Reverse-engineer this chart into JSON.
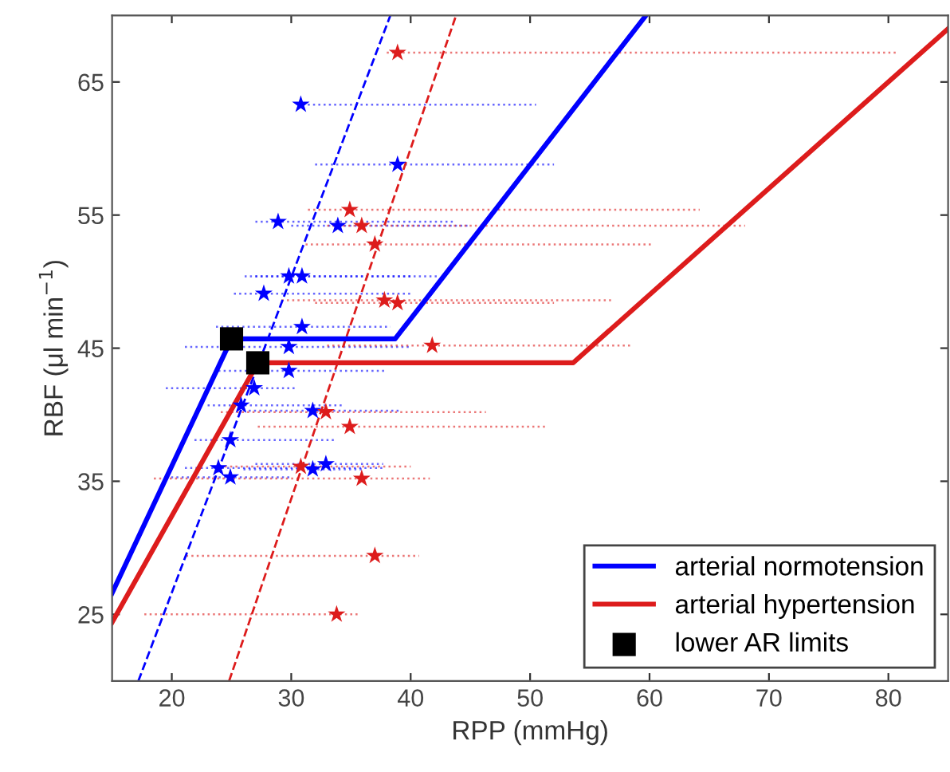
{
  "chart_data": {
    "type": "line",
    "xlabel": "RPP (mmHg)",
    "ylabel": "RBF (μl min$^{−1}$)",
    "xlim": [
      15,
      85
    ],
    "ylim": [
      20,
      70
    ],
    "xticks": [
      20,
      30,
      40,
      50,
      60,
      70,
      80
    ],
    "yticks": [
      25,
      35,
      45,
      55,
      65
    ],
    "grid": false,
    "legend": "bottom right",
    "series": [
      {
        "type": "scatter",
        "color": "#0000ff",
        "marker": "star",
        "x": [
          30.8,
          38.9,
          28.9,
          33.9,
          29.8,
          30.9,
          27.7,
          30.9,
          29.8,
          29.8,
          26.9,
          25.8,
          31.8,
          24.9,
          23.9,
          24.9,
          31.8,
          32.9
        ],
        "values": [
          63.3,
          58.8,
          54.5,
          54.2,
          50.4,
          50.4,
          49.1,
          46.6,
          45.1,
          43.3,
          42.0,
          40.7,
          40.3,
          38.1,
          36.0,
          35.3,
          35.9,
          36.3
        ],
        "xerrors": [
          [
            30.5,
            50.5
          ],
          [
            32,
            52
          ],
          [
            27,
            43.6
          ],
          [
            30,
            45
          ],
          [
            26.1,
            42.3
          ],
          [
            27,
            40
          ],
          [
            25.2,
            40
          ],
          [
            23.7,
            38.3
          ],
          [
            21.1,
            40
          ],
          [
            23.9,
            38
          ],
          [
            19.5,
            30.4
          ],
          [
            23,
            34.3
          ],
          [
            26,
            39
          ],
          [
            21.9,
            33.8
          ],
          [
            21.1,
            37.7
          ],
          [
            19.5,
            30
          ],
          [
            26,
            36
          ],
          [
            27,
            37.7
          ]
        ]
      },
      {
        "type": "scatter",
        "color": "#dd1c1c",
        "marker": "star",
        "x": [
          38.9,
          34.9,
          35.9,
          37.0,
          37.8,
          38.9,
          41.8,
          32.9,
          34.9,
          30.8,
          35.9,
          37.0,
          33.8
        ],
        "values": [
          67.2,
          55.4,
          54.2,
          52.8,
          48.6,
          48.4,
          45.2,
          40.2,
          39.1,
          36.1,
          35.2,
          29.4,
          25.0
        ],
        "xerrors": [
          [
            38,
            80.8
          ],
          [
            31.4,
            64.2
          ],
          [
            33,
            68
          ],
          [
            31.2,
            60.2
          ],
          [
            29.2,
            57
          ],
          [
            32,
            52
          ],
          [
            33,
            58.4
          ],
          [
            24.1,
            46.3
          ],
          [
            27.2,
            51.3
          ],
          [
            24,
            40
          ],
          [
            18.5,
            41.6
          ],
          [
            21.2,
            40.7
          ],
          [
            17.7,
            35.8
          ]
        ]
      },
      {
        "color": "#0000ff",
        "line_style": "dashed",
        "x": [
          17.2,
          38.3
        ],
        "values": [
          20,
          70
        ]
      },
      {
        "color": "#dd1c1c",
        "line_style": "dashed",
        "x": [
          24.8,
          43.8
        ],
        "values": [
          20,
          70
        ]
      },
      {
        "name": "arterial normotension",
        "color": "#0000ff",
        "line_style": "solid",
        "x": [
          15,
          25,
          38.7,
          59.7
        ],
        "values": [
          26.6,
          45.7,
          45.7,
          70
        ]
      },
      {
        "name": "arterial hypertension",
        "color": "#dd1c1c",
        "line_style": "solid",
        "x": [
          15,
          27.2,
          53.6,
          85
        ],
        "values": [
          24.4,
          43.9,
          43.9,
          69
        ]
      },
      {
        "type": "scatter",
        "name": "lower AR limits",
        "color": "#000000",
        "marker": "square",
        "x": [
          25,
          27.2
        ],
        "values": [
          45.7,
          43.9
        ]
      }
    ]
  }
}
